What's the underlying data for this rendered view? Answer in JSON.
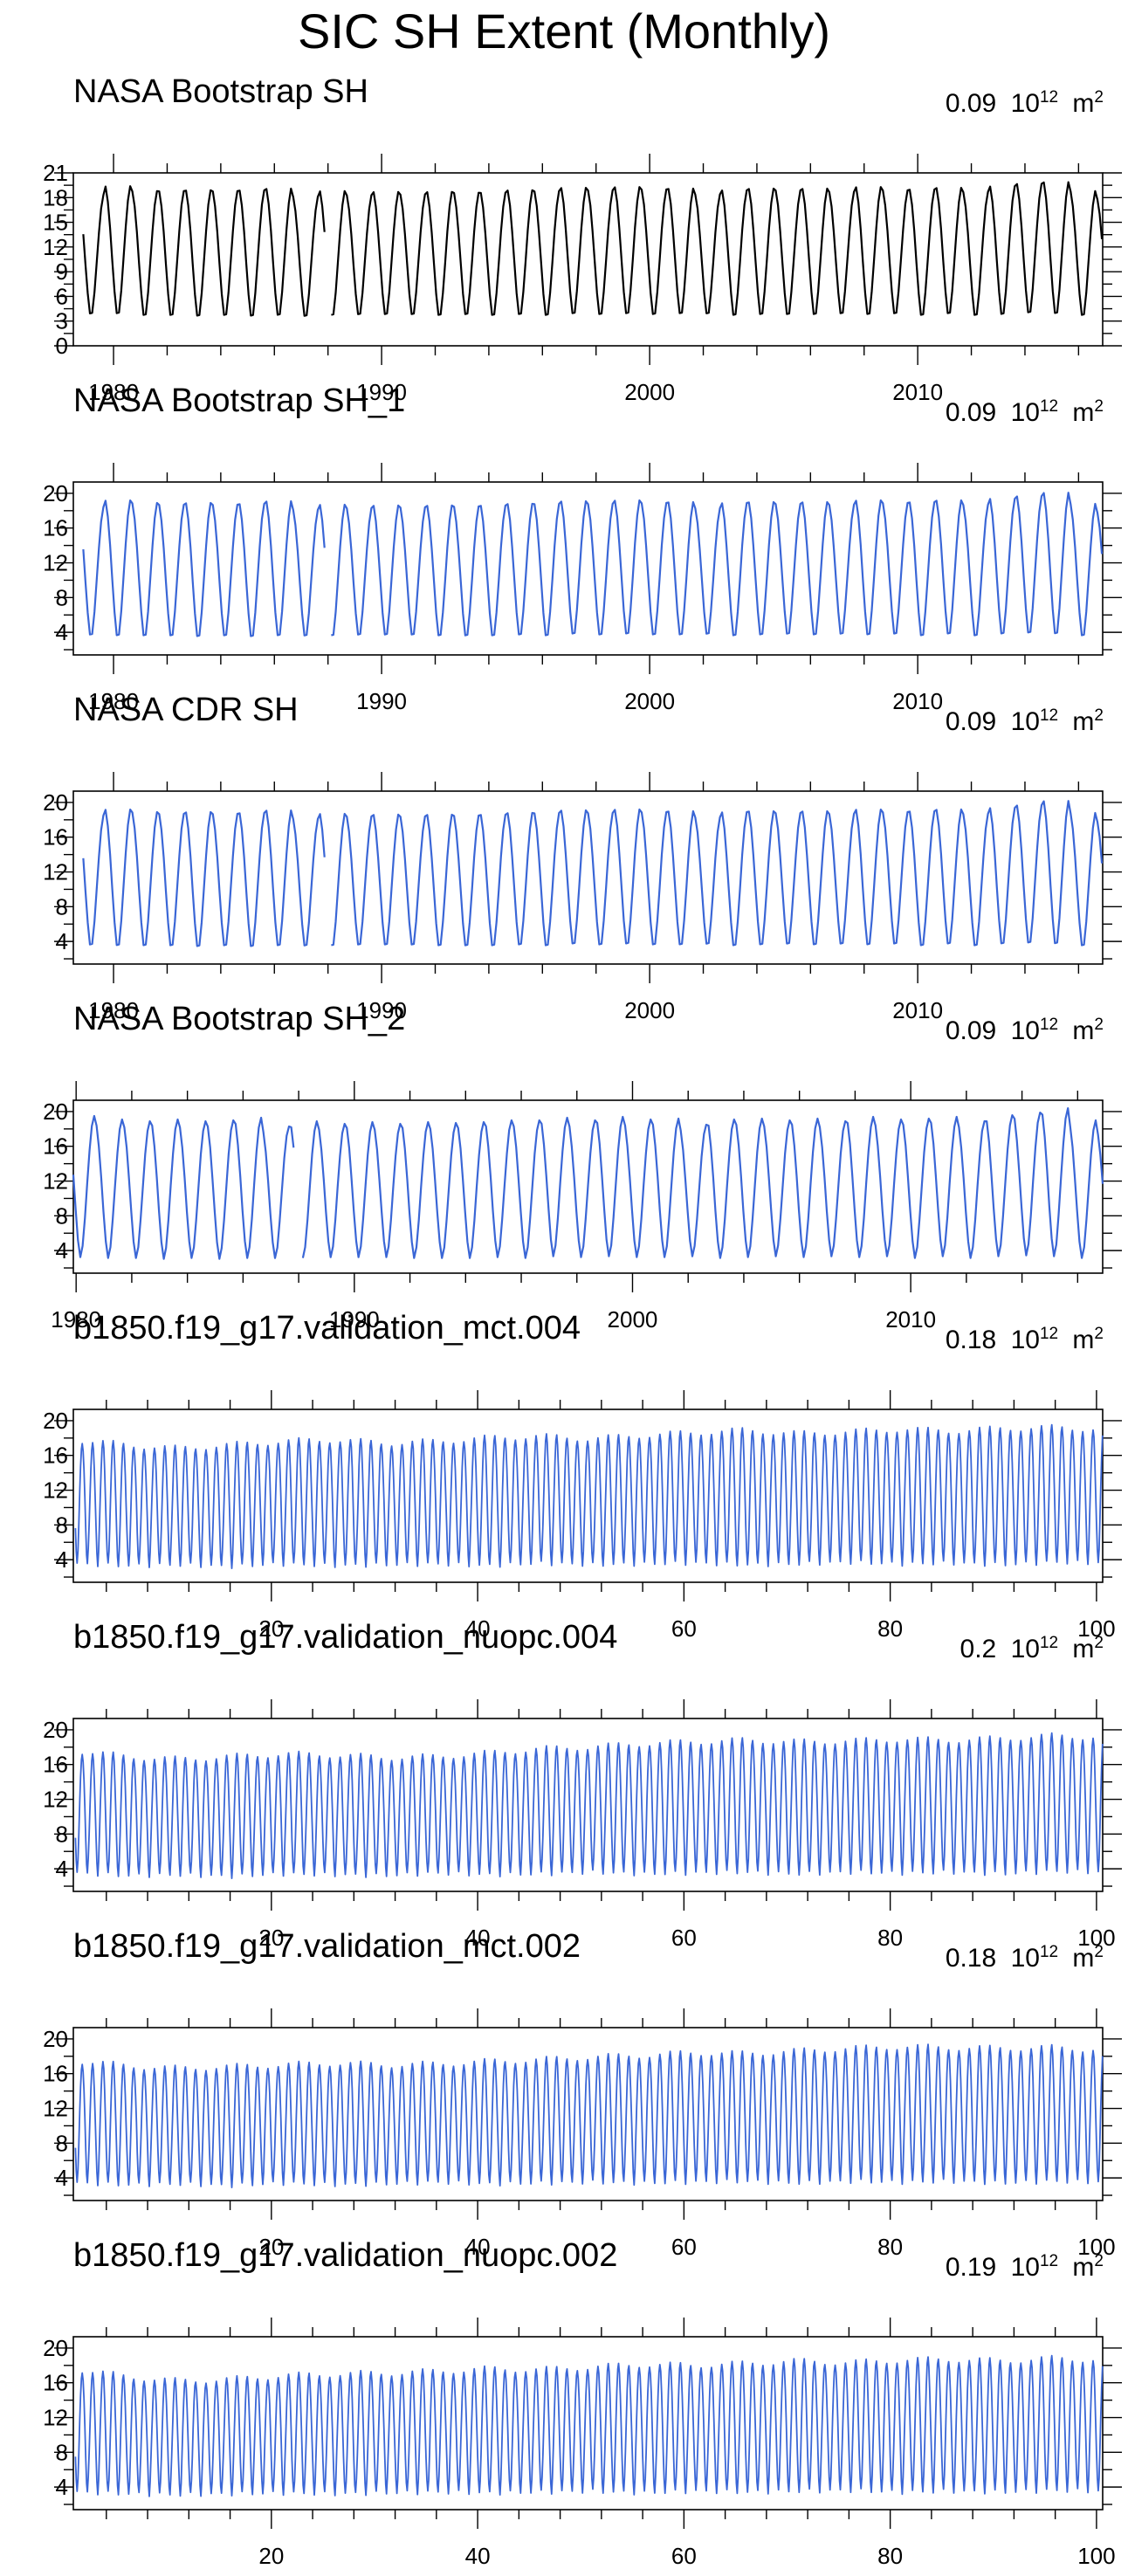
{
  "figure_title": "SIC SH Extent (Monthly)",
  "unit": {
    "base": "10",
    "exponent": "12",
    "suffix": "m",
    "suffix_exponent": "2"
  },
  "chart_data": [
    {
      "type": "line",
      "title": "NASA Bootstrap SH",
      "note_value": "0.09",
      "color": "#000000",
      "xaxis": "year",
      "xlim": [
        1978.5,
        2016.9
      ],
      "xticks": [
        1980,
        1990,
        2000,
        2010
      ],
      "xtick_labels": [
        "1980",
        "1990",
        "2000",
        "2010"
      ],
      "ylim": [
        0,
        21
      ],
      "yticks": [
        0,
        3,
        6,
        9,
        12,
        15,
        18,
        21
      ],
      "ytick_labels": [
        "0",
        "3",
        "6",
        "9",
        "12",
        "15",
        "18",
        "21"
      ],
      "x_start": 1978.87,
      "gap": [
        1987.87,
        1988.1
      ],
      "annual_min": [
        3.5,
        3.5,
        3.3,
        3.3,
        3.2,
        3.3,
        3.2,
        3.3,
        3.2,
        3.3,
        3.4,
        3.4,
        3.4,
        3.3,
        3.4,
        3.3,
        3.4,
        3.3,
        3.5,
        3.4,
        3.5,
        3.4,
        3.5,
        3.5,
        3.3,
        3.4,
        3.4,
        3.4,
        3.5,
        3.4,
        3.5,
        3.3,
        3.5,
        3.3,
        3.4,
        3.6,
        3.5,
        3.3,
        2.7
      ],
      "annual_max": [
        18.5,
        19.6,
        19.0,
        19.0,
        19.1,
        19.0,
        19.1,
        19.3,
        18.3,
        19.0,
        18.5,
        18.9,
        18.6,
        18.9,
        18.8,
        18.8,
        19.1,
        19.0,
        19.4,
        19.1,
        19.5,
        19.2,
        19.3,
        18.6,
        19.1,
        19.3,
        19.1,
        19.3,
        18.9,
        19.5,
        19.1,
        19.2,
        19.4,
        18.9,
        19.6,
        19.9,
        20.1,
        19.0,
        18.0
      ]
    },
    {
      "type": "line",
      "title": "NASA Bootstrap SH_1",
      "note_value": "0.09",
      "color": "#3a66d6",
      "xaxis": "year",
      "xlim": [
        1978.5,
        2016.9
      ],
      "xticks": [
        1980,
        1990,
        2000,
        2010
      ],
      "xtick_labels": [
        "1980",
        "1990",
        "2000",
        "2010"
      ],
      "ylim": [
        1.4,
        21.3
      ],
      "yticks": [
        4,
        8,
        12,
        16,
        20
      ],
      "ytick_labels": [
        "4",
        "8",
        "12",
        "16",
        "20"
      ],
      "x_start": 1978.87,
      "gap": [
        1987.87,
        1988.1
      ],
      "annual_min": [
        3.3,
        3.2,
        3.2,
        3.2,
        3.1,
        3.2,
        3.1,
        3.2,
        3.2,
        3.2,
        3.3,
        3.3,
        3.3,
        3.2,
        3.2,
        3.2,
        3.3,
        3.2,
        3.4,
        3.3,
        3.4,
        3.3,
        3.3,
        3.4,
        3.2,
        3.3,
        3.4,
        3.3,
        3.4,
        3.3,
        3.4,
        3.2,
        3.4,
        3.2,
        3.4,
        3.5,
        3.4,
        3.2,
        2.9
      ],
      "annual_max": [
        18.6,
        19.4,
        19.1,
        18.9,
        19.1,
        18.9,
        19.0,
        19.3,
        18.3,
        18.9,
        18.5,
        18.8,
        18.6,
        18.8,
        18.7,
        18.8,
        19.0,
        19.0,
        19.3,
        19.0,
        19.4,
        19.1,
        19.2,
        18.5,
        19.1,
        19.2,
        19.0,
        19.2,
        18.9,
        19.4,
        19.1,
        19.2,
        19.4,
        18.9,
        19.6,
        19.9,
        20.3,
        19.0,
        18.0
      ]
    },
    {
      "type": "line",
      "title": "NASA CDR SH",
      "note_value": "0.09",
      "color": "#3a66d6",
      "xaxis": "year",
      "xlim": [
        1978.5,
        2016.9
      ],
      "xticks": [
        1980,
        1990,
        2000,
        2010
      ],
      "xtick_labels": [
        "1980",
        "1990",
        "2000",
        "2010"
      ],
      "ylim": [
        1.4,
        21.3
      ],
      "yticks": [
        4,
        8,
        12,
        16,
        20
      ],
      "ytick_labels": [
        "4",
        "8",
        "12",
        "16",
        "20"
      ],
      "x_start": 1978.87,
      "gap": [
        1987.87,
        1988.1
      ],
      "annual_min": [
        3.2,
        3.1,
        3.1,
        3.1,
        3.0,
        3.1,
        3.0,
        3.1,
        3.1,
        3.1,
        3.2,
        3.2,
        3.2,
        3.1,
        3.1,
        3.1,
        3.2,
        3.1,
        3.3,
        3.2,
        3.3,
        3.2,
        3.2,
        3.3,
        3.1,
        3.2,
        3.3,
        3.2,
        3.3,
        3.2,
        3.3,
        3.1,
        3.3,
        3.1,
        3.3,
        3.4,
        3.3,
        3.1,
        2.8
      ],
      "annual_max": [
        18.7,
        19.4,
        19.1,
        18.9,
        19.1,
        18.9,
        19.0,
        19.3,
        18.3,
        18.9,
        18.6,
        18.8,
        18.6,
        18.8,
        18.7,
        18.8,
        19.0,
        19.0,
        19.3,
        19.0,
        19.4,
        19.1,
        19.2,
        18.5,
        19.1,
        19.2,
        19.0,
        19.2,
        18.9,
        19.4,
        19.1,
        19.2,
        19.4,
        18.9,
        19.6,
        19.9,
        20.4,
        19.0,
        18.0
      ]
    },
    {
      "type": "line",
      "title": "NASA Bootstrap SH_2",
      "note_value": "0.09",
      "color": "#3a66d6",
      "xaxis": "year",
      "xlim": [
        1979.9,
        2016.9
      ],
      "xticks": [
        1980,
        1990,
        2000,
        2010
      ],
      "xtick_labels": [
        "1980",
        "1990",
        "2000",
        "2010"
      ],
      "ylim": [
        1.4,
        21.3
      ],
      "yticks": [
        4,
        8,
        12,
        16,
        20
      ],
      "ytick_labels": [
        "4",
        "8",
        "12",
        "16",
        "20"
      ],
      "x_start": 1979.9,
      "gap": [
        1987.87,
        1988.1
      ],
      "annual_min": [
        3.2,
        3.1,
        3.1,
        3.0,
        3.1,
        3.0,
        3.1,
        3.1,
        3.1,
        3.2,
        3.2,
        3.2,
        3.1,
        3.1,
        3.1,
        3.2,
        3.1,
        3.3,
        3.2,
        3.3,
        3.2,
        3.2,
        3.3,
        3.1,
        3.2,
        3.3,
        3.2,
        3.3,
        3.2,
        3.3,
        3.1,
        3.3,
        3.1,
        3.3,
        3.4,
        3.3,
        3.1,
        2.8
      ],
      "annual_max": [
        19.5,
        19.1,
        18.9,
        19.1,
        18.9,
        19.0,
        19.3,
        18.3,
        18.9,
        18.6,
        18.8,
        18.6,
        18.8,
        18.7,
        18.8,
        19.0,
        19.0,
        19.3,
        19.0,
        19.4,
        19.1,
        19.2,
        18.5,
        19.1,
        19.2,
        19.0,
        19.2,
        18.9,
        19.4,
        19.1,
        19.2,
        19.4,
        18.9,
        19.6,
        19.9,
        20.4,
        19.0,
        18.0
      ]
    },
    {
      "type": "line",
      "title": "b1850.f19_g17.validation_mct.004",
      "note_value": "0.18",
      "color": "#3a66d6",
      "xaxis": "model",
      "xlim": [
        0.8,
        100.6
      ],
      "xticks": [
        20,
        40,
        60,
        80,
        100
      ],
      "xtick_labels": [
        "20",
        "40",
        "60",
        "80",
        "100"
      ],
      "ylim": [
        1.4,
        21.3
      ],
      "yticks": [
        4,
        8,
        12,
        16,
        20
      ],
      "ytick_labels": [
        "4",
        "8",
        "12",
        "16",
        "20"
      ],
      "x_start": 1,
      "n_years": 100,
      "max_anchors": [
        17.8,
        17.2,
        16.8,
        17.2,
        17.6,
        17.8,
        17.4,
        17.6,
        18.0,
        18.2,
        17.9,
        18.3,
        18.6,
        18.9,
        18.5,
        18.7,
        19.0,
        18.8,
        19.1,
        19.2,
        19.0
      ],
      "min_anchors": [
        3.5,
        3.3,
        3.4,
        3.2,
        3.5,
        3.3,
        3.4,
        3.5,
        3.3,
        3.6,
        3.4,
        3.5,
        3.6,
        3.4,
        3.5,
        3.7,
        3.5,
        3.6,
        3.4,
        3.7,
        3.6
      ]
    },
    {
      "type": "line",
      "title": "b1850.f19_g17.validation_nuopc.004",
      "note_value": "0.2",
      "color": "#3a66d6",
      "xaxis": "model",
      "xlim": [
        0.8,
        100.6
      ],
      "xticks": [
        20,
        40,
        60,
        80,
        100
      ],
      "xtick_labels": [
        "20",
        "40",
        "60",
        "80",
        "100"
      ],
      "ylim": [
        1.4,
        21.3
      ],
      "yticks": [
        4,
        8,
        12,
        16,
        20
      ],
      "ytick_labels": [
        "4",
        "8",
        "12",
        "16",
        "20"
      ],
      "x_start": 1,
      "n_years": 100,
      "max_anchors": [
        17.6,
        16.9,
        16.6,
        16.9,
        17.2,
        17.1,
        16.8,
        16.9,
        17.3,
        17.8,
        18.0,
        18.4,
        18.6,
        18.8,
        18.6,
        18.7,
        18.9,
        18.8,
        19.0,
        19.3,
        19.1
      ],
      "min_anchors": [
        3.5,
        3.2,
        3.3,
        3.1,
        3.4,
        3.3,
        3.2,
        3.5,
        3.3,
        3.4,
        3.6,
        3.4,
        3.5,
        3.6,
        3.4,
        3.6,
        3.5,
        3.6,
        3.4,
        3.7,
        3.6
      ]
    },
    {
      "type": "line",
      "title": "b1850.f19_g17.validation_mct.002",
      "note_value": "0.18",
      "color": "#3a66d6",
      "xaxis": "model",
      "xlim": [
        0.8,
        100.6
      ],
      "xticks": [
        20,
        40,
        60,
        80,
        100
      ],
      "xtick_labels": [
        "20",
        "40",
        "60",
        "80",
        "100"
      ],
      "ylim": [
        1.4,
        21.3
      ],
      "yticks": [
        4,
        8,
        12,
        16,
        20
      ],
      "ytick_labels": [
        "4",
        "8",
        "12",
        "16",
        "20"
      ],
      "x_start": 1,
      "n_years": 100,
      "max_anchors": [
        17.5,
        16.9,
        16.6,
        16.8,
        17.0,
        17.2,
        17.0,
        17.1,
        17.4,
        17.6,
        17.9,
        18.1,
        18.4,
        18.3,
        18.6,
        18.9,
        19.1,
        19.0,
        18.9,
        19.0,
        18.7
      ],
      "min_anchors": [
        3.4,
        3.2,
        3.3,
        3.1,
        3.4,
        3.2,
        3.3,
        3.5,
        3.3,
        3.4,
        3.5,
        3.4,
        3.5,
        3.6,
        3.4,
        3.6,
        3.5,
        3.6,
        3.4,
        3.6,
        3.5
      ]
    },
    {
      "type": "line",
      "title": "b1850.f19_g17.validation_nuopc.002",
      "note_value": "0.19",
      "color": "#3a66d6",
      "xaxis": "model",
      "xlim": [
        0.8,
        100.6
      ],
      "xticks": [
        20,
        40,
        60,
        80,
        100
      ],
      "xtick_labels": [
        "20",
        "40",
        "60",
        "80",
        "100"
      ],
      "ylim": [
        1.4,
        21.3
      ],
      "yticks": [
        4,
        8,
        12,
        16,
        20
      ],
      "ytick_labels": [
        "4",
        "8",
        "12",
        "16",
        "20"
      ],
      "x_start": 1,
      "n_years": 100,
      "max_anchors": [
        17.6,
        16.7,
        16.2,
        16.4,
        16.8,
        17.0,
        17.1,
        17.3,
        17.6,
        17.5,
        17.8,
        18.1,
        18.0,
        18.2,
        18.5,
        18.3,
        18.6,
        18.7,
        18.5,
        18.8,
        18.6
      ],
      "min_anchors": [
        3.4,
        3.2,
        3.1,
        3.2,
        3.3,
        3.2,
        3.3,
        3.4,
        3.3,
        3.4,
        3.5,
        3.3,
        3.5,
        3.4,
        3.5,
        3.6,
        3.4,
        3.5,
        3.4,
        3.6,
        3.5
      ]
    }
  ]
}
